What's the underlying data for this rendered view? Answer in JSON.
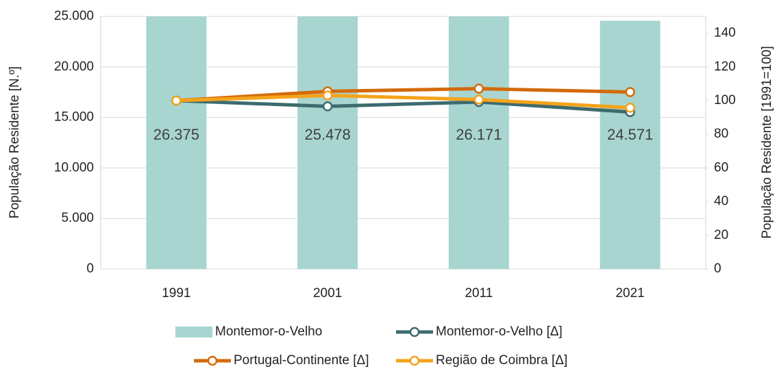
{
  "chart_data": {
    "type": "bar",
    "categories": [
      "1991",
      "2001",
      "2011",
      "2021"
    ],
    "ylabel": "População Residente [N.º]",
    "y2label": "População Residente [1991=100]",
    "ylim": [
      0,
      25000
    ],
    "yticks": [
      0,
      {
        "value": 5000,
        "label": "5.000"
      },
      {
        "value": 10000,
        "label": "10.000"
      },
      {
        "value": 15000,
        "label": "15.000"
      },
      {
        "value": 20000,
        "label": "20.000"
      },
      {
        "value": 25000,
        "label": "25.000"
      }
    ],
    "y2lim": [
      0,
      150
    ],
    "y2ticks": [
      0,
      20,
      40,
      60,
      80,
      100,
      120,
      140
    ],
    "grid": true,
    "legend": "bottom",
    "series": [
      {
        "name": "Montemor-o-Velho",
        "type": "bar",
        "color": "#a8d5d0",
        "values": [
          26375,
          25478,
          26171,
          24571
        ],
        "value_labels": [
          "26.375",
          "25.478",
          "26.171",
          "24.571"
        ]
      },
      {
        "name": "Montemor-o-Velho [Δ]",
        "type": "line",
        "axis": "y2",
        "color": "#3d6b6e",
        "values": [
          100,
          96.6,
          99.2,
          93.2
        ]
      },
      {
        "name": "Portugal-Continente [Δ]",
        "type": "line",
        "axis": "y2",
        "color": "#d46a0a",
        "values": [
          100,
          105.5,
          107.1,
          105.1
        ]
      },
      {
        "name": "Região de Coimbra [Δ]",
        "type": "line",
        "axis": "y2",
        "color": "#f5a31a",
        "values": [
          100,
          103.1,
          100.6,
          95.8
        ]
      }
    ]
  }
}
